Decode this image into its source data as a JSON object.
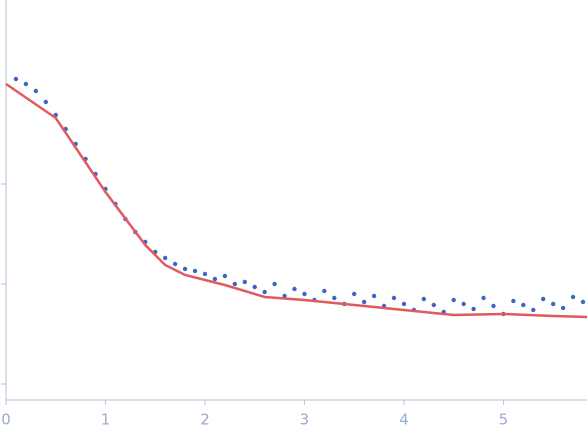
{
  "chart_data": {
    "type": "scatter",
    "xlim": [
      0,
      5.84
    ],
    "xticks": [
      0,
      1,
      2,
      3,
      4,
      5
    ],
    "ylim": [
      -0.16,
      3.84
    ],
    "yticks": [
      0,
      1,
      2
    ],
    "series": [
      {
        "kind": "points",
        "color": "#3a65c0",
        "x": [
          0.1,
          0.2,
          0.3,
          0.4,
          0.5,
          0.6,
          0.7,
          0.8,
          0.9,
          1.0,
          1.1,
          1.2,
          1.3,
          1.4,
          1.5,
          1.6,
          1.7,
          1.8,
          1.9,
          2.0,
          2.1,
          2.2,
          2.3,
          2.4,
          2.5,
          2.6,
          2.7,
          2.8,
          2.9,
          3.0,
          3.1,
          3.2,
          3.3,
          3.4,
          3.5,
          3.6,
          3.7,
          3.8,
          3.9,
          4.0,
          4.1,
          4.2,
          4.3,
          4.4,
          4.5,
          4.6,
          4.7,
          4.8,
          4.9,
          5.0,
          5.1,
          5.2,
          5.3,
          5.4,
          5.5,
          5.6,
          5.7,
          5.8
        ],
        "values": [
          3.05,
          3.0,
          2.93,
          2.82,
          2.69,
          2.55,
          2.4,
          2.25,
          2.1,
          1.95,
          1.8,
          1.65,
          1.52,
          1.42,
          1.32,
          1.26,
          1.2,
          1.15,
          1.13,
          1.1,
          1.05,
          1.08,
          1.0,
          1.02,
          0.97,
          0.92,
          1.0,
          0.88,
          0.95,
          0.9,
          0.84,
          0.93,
          0.86,
          0.8,
          0.9,
          0.82,
          0.88,
          0.78,
          0.86,
          0.8,
          0.74,
          0.85,
          0.79,
          0.72,
          0.84,
          0.8,
          0.75,
          0.86,
          0.78,
          0.7,
          0.83,
          0.79,
          0.74,
          0.85,
          0.8,
          0.76,
          0.87,
          0.82
        ]
      },
      {
        "kind": "line",
        "color": "#e05a5e",
        "x": [
          0,
          0.5,
          1,
          1.4,
          1.6,
          1.8,
          2.2,
          2.6,
          3,
          3.5,
          4,
          4.5,
          5,
          5.5,
          5.84
        ],
        "values": [
          3.0,
          2.66,
          1.92,
          1.39,
          1.19,
          1.09,
          0.99,
          0.87,
          0.84,
          0.79,
          0.74,
          0.69,
          0.7,
          0.68,
          0.67
        ]
      }
    ]
  }
}
